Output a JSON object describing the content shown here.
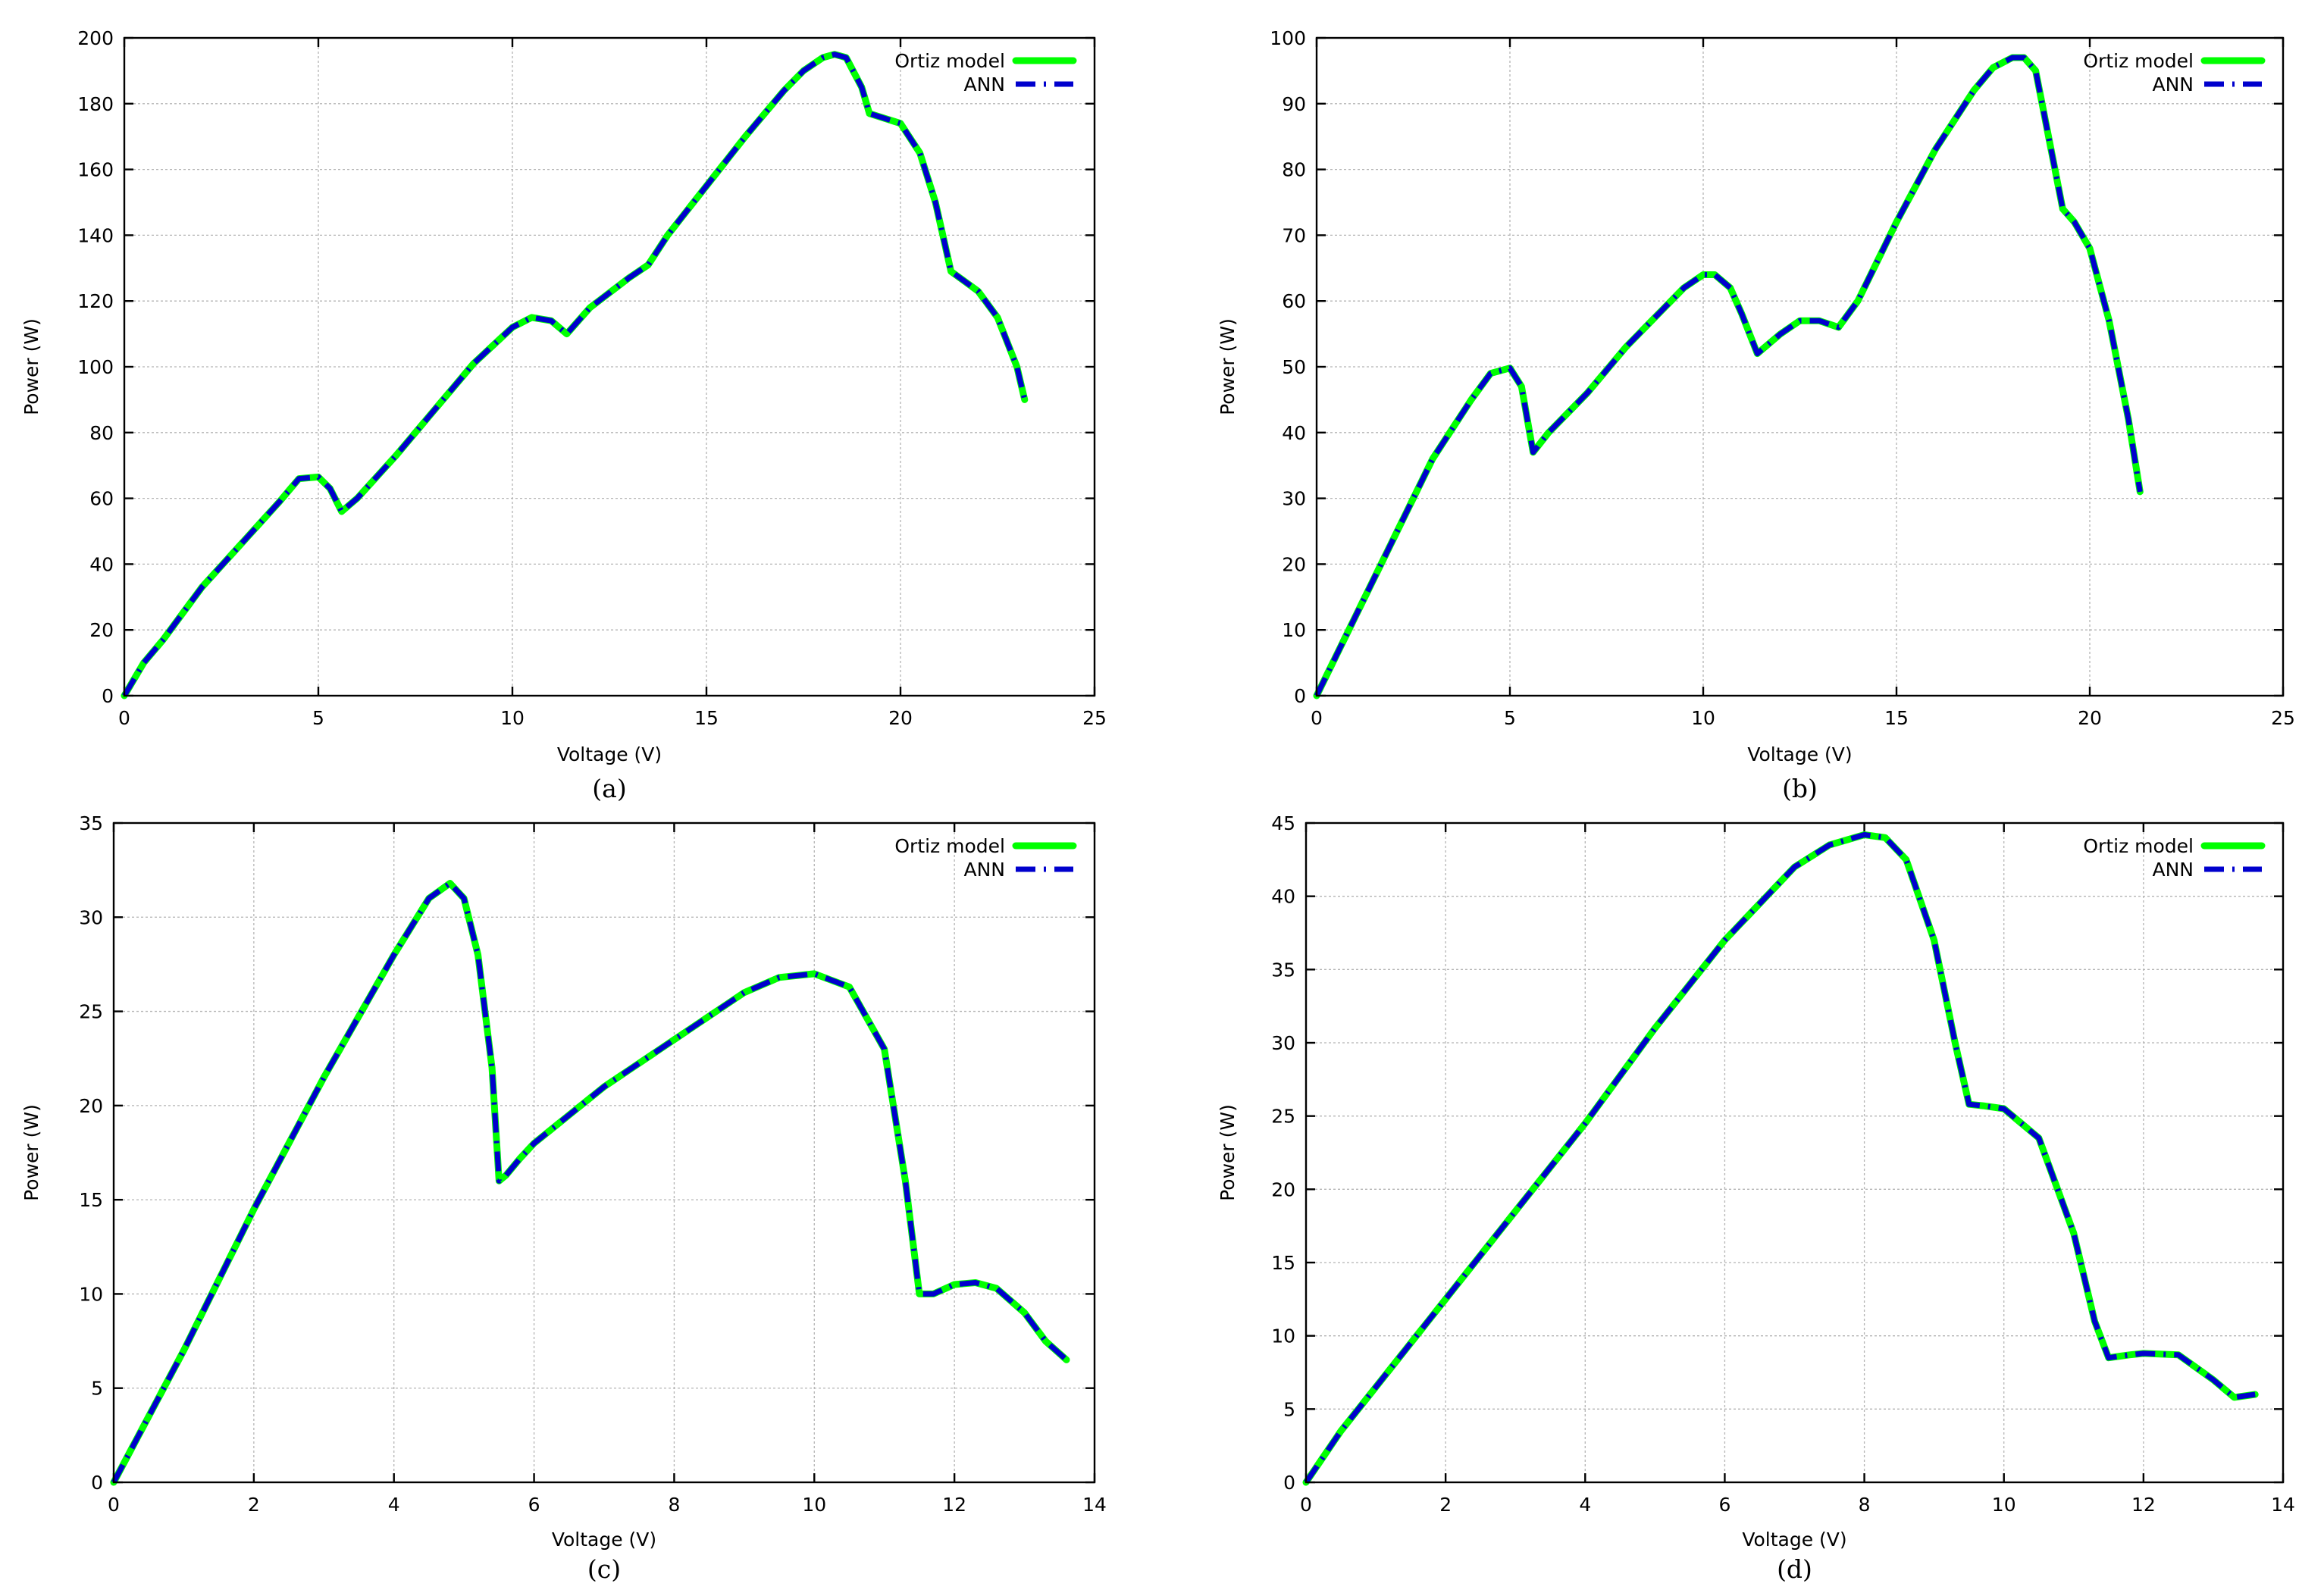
{
  "chart_data": [
    {
      "type": "line",
      "panel_label": "(a)",
      "xlabel": "Voltage (V)",
      "ylabel": "Power (W)",
      "xlim": [
        0,
        25
      ],
      "ylim": [
        0,
        200
      ],
      "xticks": [
        0,
        5,
        10,
        15,
        20,
        25
      ],
      "yticks": [
        0,
        20,
        40,
        60,
        80,
        100,
        120,
        140,
        160,
        180,
        200
      ],
      "grid": true,
      "legend_position": "top-right",
      "series": [
        {
          "name": "Ortiz model",
          "color": "#00ff00",
          "style": "solid",
          "x": [
            0,
            0.5,
            1,
            2,
            3,
            4,
            4.5,
            5,
            5.3,
            5.6,
            6,
            7,
            8,
            9,
            10,
            10.5,
            11,
            11.4,
            12,
            13,
            13.5,
            14,
            15,
            16,
            17,
            17.5,
            18,
            18.3,
            18.6,
            19,
            19.2,
            20,
            20.5,
            20.9,
            21.3,
            22,
            22.5,
            23,
            23.2
          ],
          "y": [
            0,
            10,
            17,
            33,
            46,
            59,
            66,
            66.5,
            63,
            56,
            60,
            73,
            87,
            101,
            112,
            115,
            114,
            110,
            118,
            127,
            131,
            140,
            155,
            170,
            184,
            190,
            194,
            195,
            194,
            185,
            177,
            174,
            165,
            150,
            129,
            123,
            115,
            100,
            90
          ]
        },
        {
          "name": "ANN",
          "color": "#0000cd",
          "style": "dash-dot",
          "x": [
            0,
            0.5,
            1,
            2,
            3,
            4,
            4.5,
            5,
            5.3,
            5.6,
            6,
            7,
            8,
            9,
            10,
            10.5,
            11,
            11.4,
            12,
            13,
            13.5,
            14,
            15,
            16,
            17,
            17.5,
            18,
            18.3,
            18.6,
            19,
            19.2,
            20,
            20.5,
            20.9,
            21.3,
            22,
            22.5,
            23,
            23.2
          ],
          "y": [
            0,
            10,
            17,
            33,
            46,
            59,
            66,
            66.5,
            63,
            56,
            60,
            73,
            87,
            101,
            112,
            115,
            114,
            110,
            118,
            127,
            131,
            140,
            155,
            170,
            184,
            190,
            194,
            195,
            194,
            185,
            177,
            174,
            165,
            150,
            129,
            123,
            115,
            100,
            90
          ]
        }
      ]
    },
    {
      "type": "line",
      "panel_label": "(b)",
      "xlabel": "Voltage (V)",
      "ylabel": "Power (W)",
      "xlim": [
        0,
        25
      ],
      "ylim": [
        0,
        100
      ],
      "xticks": [
        0,
        5,
        10,
        15,
        20,
        25
      ],
      "yticks": [
        0,
        10,
        20,
        30,
        40,
        50,
        60,
        70,
        80,
        90,
        100
      ],
      "grid": true,
      "legend_position": "top-right",
      "series": [
        {
          "name": "Ortiz model",
          "color": "#00ff00",
          "style": "solid",
          "x": [
            0,
            1,
            2,
            3,
            4,
            4.5,
            5,
            5.3,
            5.6,
            6,
            7,
            8,
            9,
            9.5,
            10,
            10.3,
            10.7,
            11,
            11.4,
            12,
            12.5,
            13,
            13.5,
            14,
            15,
            16,
            17,
            17.5,
            18,
            18.3,
            18.6,
            19,
            19.3,
            19.6,
            20,
            20.5,
            21,
            21.3
          ],
          "y": [
            0,
            12,
            24,
            36,
            45,
            49,
            49.8,
            47,
            37,
            40,
            46,
            53,
            59,
            62,
            64,
            64,
            62,
            58,
            52,
            55,
            57,
            57,
            56,
            60,
            72,
            83,
            92,
            95.5,
            97,
            97,
            95,
            83,
            74,
            72,
            68,
            57,
            42,
            31
          ]
        },
        {
          "name": "ANN",
          "color": "#0000cd",
          "style": "dash-dot",
          "x": [
            0,
            1,
            2,
            3,
            4,
            4.5,
            5,
            5.3,
            5.6,
            6,
            7,
            8,
            9,
            9.5,
            10,
            10.3,
            10.7,
            11,
            11.4,
            12,
            12.5,
            13,
            13.5,
            14,
            15,
            16,
            17,
            17.5,
            18,
            18.3,
            18.6,
            19,
            19.3,
            19.6,
            20,
            20.5,
            21,
            21.3
          ],
          "y": [
            0,
            12,
            24,
            36,
            45,
            49,
            49.8,
            47,
            37,
            40,
            46,
            53,
            59,
            62,
            64,
            64,
            62,
            58,
            52,
            55,
            57,
            57,
            56,
            60,
            72,
            83,
            92,
            95.5,
            97,
            97,
            95,
            83,
            74,
            72,
            68,
            57,
            42,
            31
          ]
        }
      ]
    },
    {
      "type": "line",
      "panel_label": "(c)",
      "xlabel": "Voltage (V)",
      "ylabel": "Power (W)",
      "xlim": [
        0,
        14
      ],
      "ylim": [
        0,
        35
      ],
      "xticks": [
        0,
        2,
        4,
        6,
        8,
        10,
        12,
        14
      ],
      "yticks": [
        0,
        5,
        10,
        15,
        20,
        25,
        30,
        35
      ],
      "grid": true,
      "legend_position": "top-right",
      "series": [
        {
          "name": "Ortiz model",
          "color": "#00ff00",
          "style": "solid",
          "x": [
            0,
            0.5,
            1,
            2,
            3,
            4,
            4.5,
            4.8,
            5.0,
            5.2,
            5.4,
            5.5,
            5.6,
            5.8,
            6,
            7,
            8,
            9,
            9.5,
            10,
            10.5,
            11,
            11.3,
            11.5,
            11.7,
            12,
            12.3,
            12.6,
            13,
            13.3,
            13.6
          ],
          "y": [
            0,
            3.5,
            7,
            14.5,
            21.5,
            28,
            31,
            31.8,
            31,
            28,
            22,
            16,
            16.3,
            17.2,
            18,
            21,
            23.5,
            26,
            26.8,
            27,
            26.3,
            23,
            16,
            10,
            10,
            10.5,
            10.6,
            10.3,
            9,
            7.5,
            6.5
          ]
        },
        {
          "name": "ANN",
          "color": "#0000cd",
          "style": "dash-dot",
          "x": [
            0,
            0.5,
            1,
            2,
            3,
            4,
            4.5,
            4.8,
            5.0,
            5.2,
            5.4,
            5.5,
            5.6,
            5.8,
            6,
            7,
            8,
            9,
            9.5,
            10,
            10.5,
            11,
            11.3,
            11.5,
            11.7,
            12,
            12.3,
            12.6,
            13,
            13.3,
            13.6
          ],
          "y": [
            0,
            3.5,
            7,
            14.5,
            21.5,
            28,
            31,
            31.8,
            31,
            28,
            22,
            16,
            16.3,
            17.2,
            18,
            21,
            23.5,
            26,
            26.8,
            27,
            26.3,
            23,
            16,
            10,
            10,
            10.5,
            10.6,
            10.3,
            9,
            7.5,
            6.5
          ]
        }
      ]
    },
    {
      "type": "line",
      "panel_label": "(d)",
      "xlabel": "Voltage (V)",
      "ylabel": "Power (W)",
      "xlim": [
        0,
        14
      ],
      "ylim": [
        0,
        45
      ],
      "xticks": [
        0,
        2,
        4,
        6,
        8,
        10,
        12,
        14
      ],
      "yticks": [
        0,
        5,
        10,
        15,
        20,
        25,
        30,
        35,
        40,
        45
      ],
      "grid": true,
      "legend_position": "top-right",
      "series": [
        {
          "name": "Ortiz model",
          "color": "#00ff00",
          "style": "solid",
          "x": [
            0,
            0.5,
            1,
            2,
            3,
            4,
            5,
            6,
            7,
            7.5,
            8,
            8.3,
            8.6,
            9,
            9.3,
            9.5,
            9.7,
            10,
            10.5,
            11,
            11.3,
            11.5,
            11.8,
            12,
            12.5,
            13,
            13.3,
            13.6
          ],
          "y": [
            0,
            3.5,
            6.5,
            12.5,
            18.5,
            24.5,
            31,
            37,
            42,
            43.5,
            44.2,
            44,
            42.5,
            37,
            30,
            25.8,
            25.7,
            25.5,
            23.5,
            17,
            11,
            8.5,
            8.7,
            8.8,
            8.7,
            7,
            5.8,
            6
          ]
        },
        {
          "name": "ANN",
          "color": "#0000cd",
          "style": "dash-dot",
          "x": [
            0,
            0.5,
            1,
            2,
            3,
            4,
            5,
            6,
            7,
            7.5,
            8,
            8.3,
            8.6,
            9,
            9.3,
            9.5,
            9.7,
            10,
            10.5,
            11,
            11.3,
            11.5,
            11.8,
            12,
            12.5,
            13,
            13.3,
            13.6
          ],
          "y": [
            0,
            3.5,
            6.5,
            12.5,
            18.5,
            24.5,
            31,
            37,
            42,
            43.5,
            44.2,
            44,
            42.5,
            37,
            30,
            25.8,
            25.7,
            25.5,
            23.5,
            17,
            11,
            8.5,
            8.7,
            8.8,
            8.7,
            7,
            5.8,
            6
          ]
        }
      ]
    }
  ]
}
